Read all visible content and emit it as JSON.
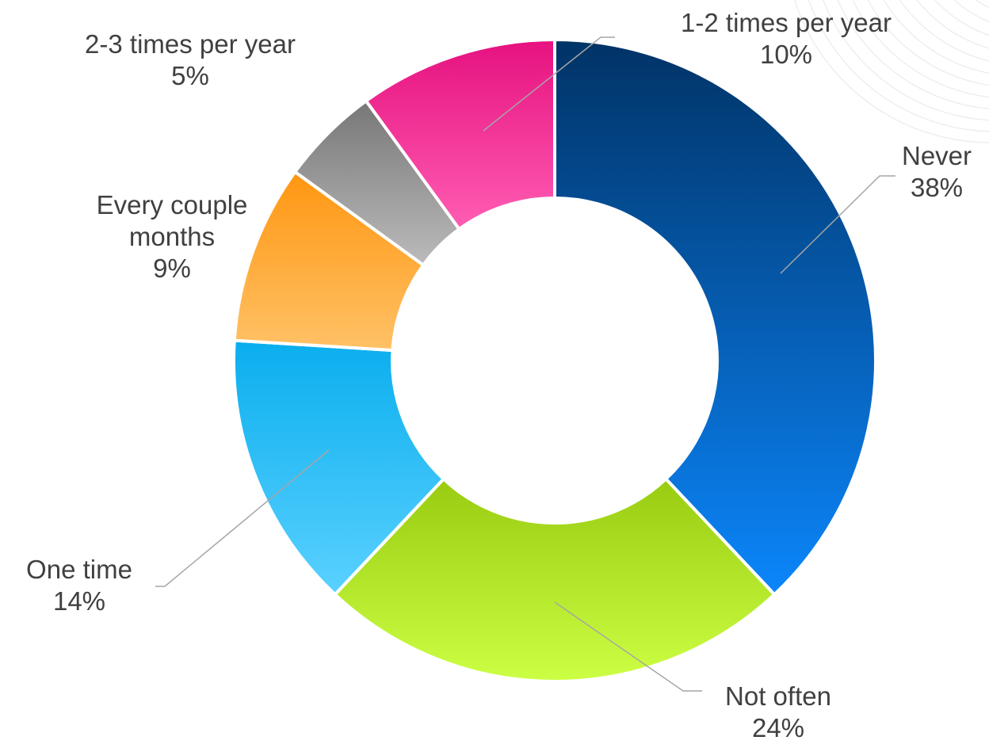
{
  "chart_data": {
    "type": "pie",
    "subtype": "donut",
    "categories": [
      "Never",
      "Not often",
      "One time",
      "Every couple months",
      "2-3 times per year",
      "1-2 times per year"
    ],
    "values": [
      38,
      24,
      14,
      9,
      5,
      10
    ],
    "value_labels": [
      "38%",
      "24%",
      "14%",
      "9%",
      "5%",
      "10%"
    ],
    "label_lines": [
      [
        "Never"
      ],
      [
        "Not often"
      ],
      [
        "One time"
      ],
      [
        "Every couple",
        "months"
      ],
      [
        "2-3 times per year"
      ],
      [
        "1-2 times per year"
      ]
    ],
    "colors": [
      [
        "#013366",
        "#0b86fb"
      ],
      [
        "#99cc11",
        "#ccff44"
      ],
      [
        "#0aaeee",
        "#5ad1ff"
      ],
      [
        "#ff9611",
        "#ffc166"
      ],
      [
        "#777777",
        "#bbbbbb"
      ],
      [
        "#e6117f",
        "#ff5db3"
      ]
    ],
    "title": "",
    "legend": "none",
    "start_angle_deg": 0,
    "direction": "clockwise"
  }
}
